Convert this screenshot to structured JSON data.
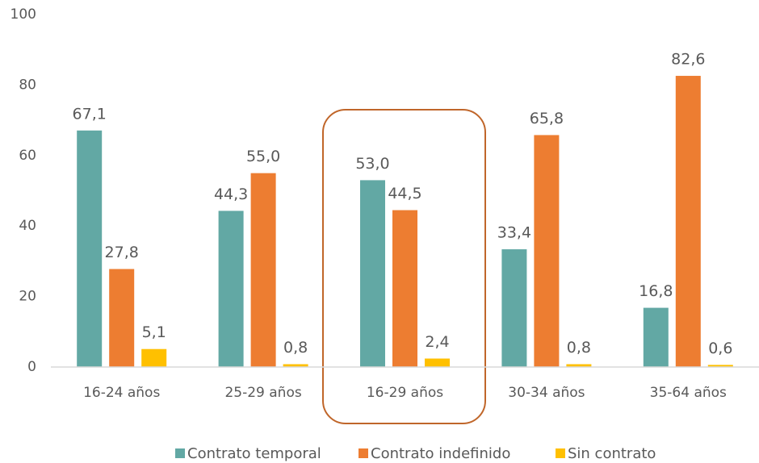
{
  "chart_data": {
    "type": "bar",
    "categories": [
      "16-24 años",
      "25-29 años",
      "16-29 años",
      "30-34 años",
      "35-64 años"
    ],
    "series": [
      {
        "name": "Contrato temporal",
        "color": "#62a8a4",
        "values": [
          67.1,
          44.3,
          53.0,
          33.4,
          16.8
        ],
        "value_labels": [
          "67,1",
          "44,3",
          "53,0",
          "33,4",
          "16,8"
        ]
      },
      {
        "name": "Contrato indefinido",
        "color": "#ed7d31",
        "values": [
          27.8,
          55.0,
          44.5,
          65.8,
          82.6
        ],
        "value_labels": [
          "27,8",
          "55,0",
          "44,5",
          "65,8",
          "82,6"
        ]
      },
      {
        "name": "Sin contrato",
        "color": "#ffc000",
        "values": [
          5.1,
          0.8,
          2.4,
          0.8,
          0.6
        ],
        "value_labels": [
          "5,1",
          "0,8",
          "2,4",
          "0,8",
          "0,6"
        ]
      }
    ],
    "ylim": [
      0,
      100
    ],
    "yticks": [
      0,
      20,
      40,
      60,
      80,
      100
    ],
    "grid": false,
    "legend": "bottom"
  }
}
